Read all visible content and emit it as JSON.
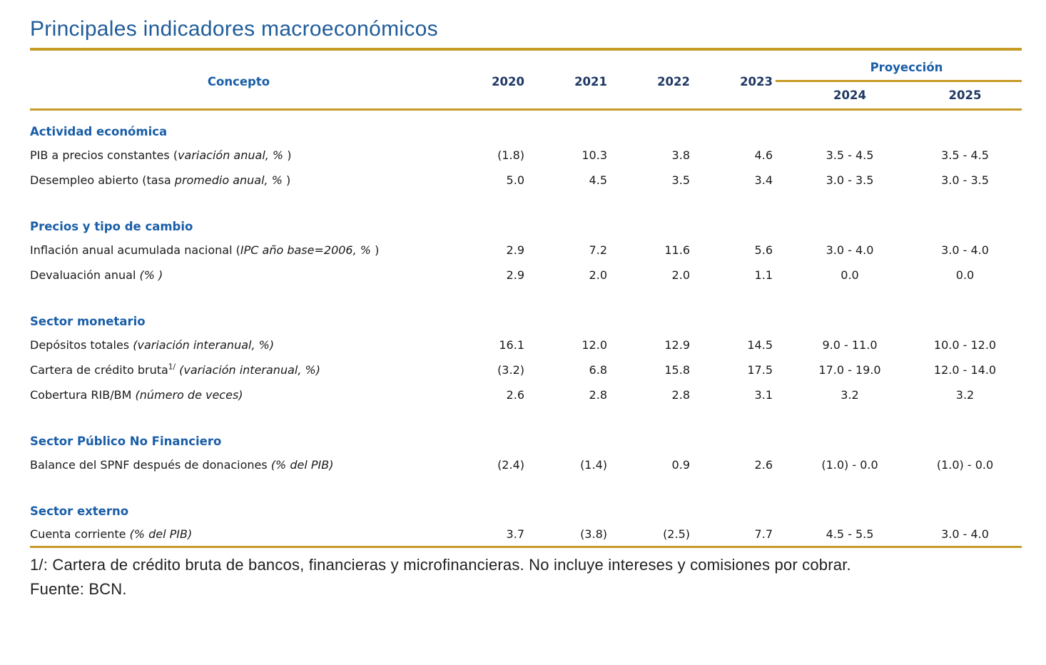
{
  "title": "Principales indicadores macroeconómicos",
  "colors": {
    "title_blue": "#1F5C99",
    "section_blue": "#1A5EA8",
    "year_navy": "#1F3864",
    "gold_rule": "#C79B28",
    "body_text": "#1a1a1a"
  },
  "table": {
    "concept_header": "Concepto",
    "year_headers": [
      "2020",
      "2021",
      "2022",
      "2023"
    ],
    "projection_header": "Proyección",
    "projection_years": [
      "2024",
      "2025"
    ],
    "sections": [
      {
        "title": "Actividad económica",
        "rows": [
          {
            "label": [
              {
                "t": "PIB a precios constantes ("
              },
              {
                "t": "variación anual, % ",
                "i": true
              },
              {
                "t": ")"
              }
            ],
            "values": [
              "(1.8)",
              "10.3",
              "3.8",
              "4.6",
              "3.5 - 4.5",
              "3.5 - 4.5"
            ]
          },
          {
            "label": [
              {
                "t": "Desempleo abierto (tasa "
              },
              {
                "t": "promedio anual, % ",
                "i": true
              },
              {
                "t": ")"
              }
            ],
            "values": [
              "5.0",
              "4.5",
              "3.5",
              "3.4",
              "3.0 - 3.5",
              "3.0 - 3.5"
            ]
          }
        ]
      },
      {
        "title": "Precios y tipo de cambio",
        "rows": [
          {
            "label": [
              {
                "t": "Inflación anual acumulada nacional ("
              },
              {
                "t": "IPC año base=2006, % ",
                "i": true
              },
              {
                "t": ")"
              }
            ],
            "values": [
              "2.9",
              "7.2",
              "11.6",
              "5.6",
              "3.0 - 4.0",
              "3.0 - 4.0"
            ]
          },
          {
            "label": [
              {
                "t": "Devaluación anual "
              },
              {
                "t": "(% )",
                "i": true
              }
            ],
            "values": [
              "2.9",
              "2.0",
              "2.0",
              "1.1",
              "0.0",
              "0.0"
            ]
          }
        ]
      },
      {
        "title": "Sector monetario",
        "rows": [
          {
            "label": [
              {
                "t": "Depósitos totales "
              },
              {
                "t": "(variación interanual, %)",
                "i": true
              }
            ],
            "values": [
              "16.1",
              "12.0",
              "12.9",
              "14.5",
              "9.0 - 11.0",
              "10.0 - 12.0"
            ]
          },
          {
            "label": [
              {
                "t": "Cartera de crédito bruta"
              },
              {
                "t": "1/",
                "sup": true
              },
              {
                "t": " "
              },
              {
                "t": "(variación interanual, %)",
                "i": true
              }
            ],
            "values": [
              "(3.2)",
              "6.8",
              "15.8",
              "17.5",
              "17.0 - 19.0",
              "12.0 - 14.0"
            ]
          },
          {
            "label": [
              {
                "t": "Cobertura RIB/BM "
              },
              {
                "t": "(número de veces)",
                "i": true
              }
            ],
            "values": [
              "2.6",
              "2.8",
              "2.8",
              "3.1",
              "3.2",
              "3.2"
            ]
          }
        ]
      },
      {
        "title": "Sector Público No Financiero",
        "rows": [
          {
            "label": [
              {
                "t": "Balance del SPNF después de donaciones "
              },
              {
                "t": "(% del PIB)",
                "i": true
              }
            ],
            "values": [
              "(2.4)",
              "(1.4)",
              "0.9",
              "2.6",
              "(1.0) - 0.0",
              "(1.0) - 0.0"
            ]
          }
        ]
      },
      {
        "title": "Sector externo",
        "rows": [
          {
            "label": [
              {
                "t": "Cuenta corriente "
              },
              {
                "t": "(% del PIB)",
                "i": true
              }
            ],
            "values": [
              "3.7",
              "(3.8)",
              "(2.5)",
              "7.7",
              "4.5 - 5.5",
              "3.0 - 4.0"
            ]
          }
        ]
      }
    ]
  },
  "footnotes": [
    "1/: Cartera de crédito bruta de bancos, financieras y microfinancieras. No incluye intereses y comisiones por cobrar.",
    "Fuente: BCN."
  ]
}
